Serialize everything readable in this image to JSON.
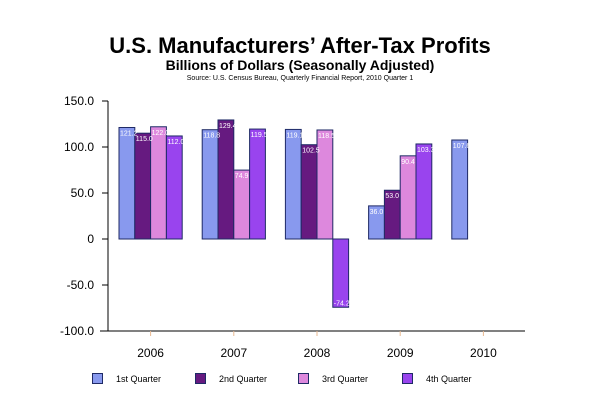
{
  "chart_data": {
    "type": "bar",
    "title": "U.S. Manufacturers’ After-Tax Profits",
    "subtitle": "Billions of Dollars (Seasonally Adjusted)",
    "source": "Source:     U.S. Census Bureau, Quarterly Financial Report, 2010 Quarter 1",
    "xlabel": "",
    "ylabel": "",
    "categories": [
      "2006",
      "2007",
      "2008",
      "2009",
      "2010"
    ],
    "series": [
      {
        "name": "1st Quarter",
        "color": "#8899ee",
        "values": [
          121.2,
          118.8,
          119.1,
          36.0,
          107.6
        ]
      },
      {
        "name": "2nd Quarter",
        "color": "#661a80",
        "values": [
          115.0,
          129.4,
          102.5,
          53.0,
          null
        ]
      },
      {
        "name": "3rd Quarter",
        "color": "#dd88dd",
        "values": [
          122.0,
          74.9,
          118.5,
          90.4,
          null
        ]
      },
      {
        "name": "4th Quarter",
        "color": "#9944ee",
        "values": [
          112.0,
          119.5,
          -74.2,
          103.3,
          null
        ]
      }
    ],
    "ylim": [
      -100,
      150
    ],
    "yticks": [
      150,
      100,
      50,
      0,
      -50,
      -100
    ],
    "ytick_labels": [
      "150.0",
      "100.0",
      "50.0",
      "0",
      "-50.0",
      "-100.0"
    ],
    "grid": false,
    "data_labels": true,
    "legend_position": "bottom"
  }
}
